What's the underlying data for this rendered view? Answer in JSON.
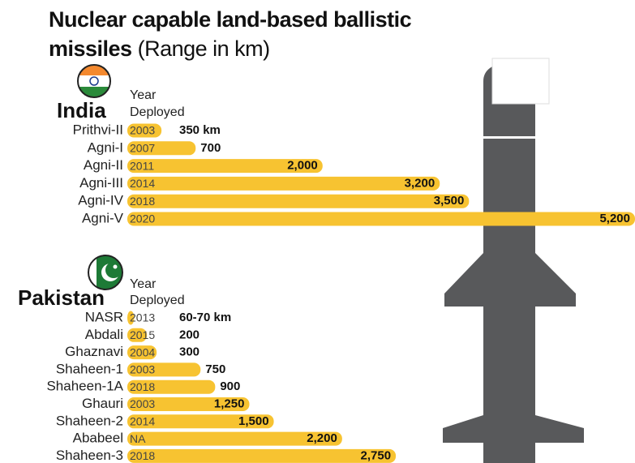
{
  "title": "Nuclear capable land-based ballistic missiles",
  "subtitle": "(Range in km)",
  "chart_data": [
    {
      "type": "bar",
      "name": "India",
      "column_header": [
        "Year",
        "Deployed"
      ],
      "categories": [
        "Prithvi-II",
        "Agni-I",
        "Agni-II",
        "Agni-III",
        "Agni-IV",
        "Agni-V"
      ],
      "years": [
        "2003",
        "2007",
        "2011",
        "2014",
        "2018",
        "2020"
      ],
      "values": [
        350,
        700,
        2000,
        3200,
        3500,
        5200
      ],
      "value_labels": [
        "350 km",
        "700",
        "2,000",
        "3,200",
        "3,500",
        "5,200"
      ],
      "color": "#f7c331",
      "xlim": [
        0,
        5200
      ]
    },
    {
      "type": "bar",
      "name": "Pakistan",
      "column_header": [
        "Year",
        "Deployed"
      ],
      "categories": [
        "NASR",
        "Abdali",
        "Ghaznavi",
        "Shaheen-1",
        "Shaheen-1A",
        "Ghauri",
        "Shaheen-2",
        "Ababeel",
        "Shaheen-3"
      ],
      "years": [
        "2013",
        "2015",
        "2004",
        "2003",
        "2018",
        "2003",
        "2014",
        "NA",
        "2018"
      ],
      "values": [
        70,
        200,
        300,
        750,
        900,
        1250,
        1500,
        2200,
        2750
      ],
      "value_labels": [
        "60-70 km",
        "200",
        "300",
        "750",
        "900",
        "1,250",
        "1,500",
        "2,200",
        "2,750"
      ],
      "color": "#f7c331",
      "xlim": [
        0,
        5200
      ]
    }
  ]
}
